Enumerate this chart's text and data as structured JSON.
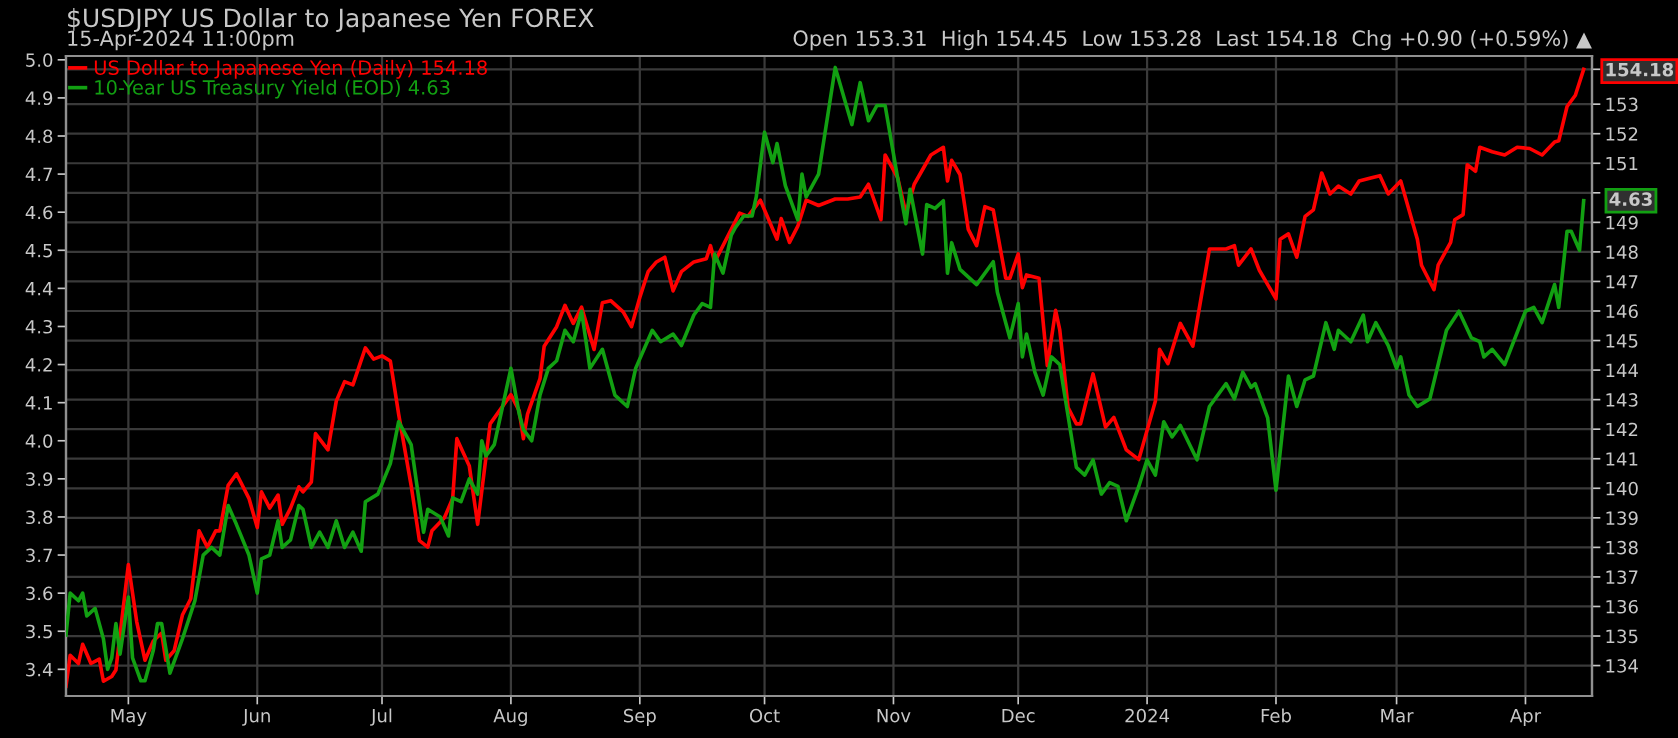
{
  "chart_data": {
    "type": "line",
    "title": "$USDJPY US Dollar to Japanese Yen FOREX",
    "subtitle": "15-Apr-2024 11:00pm",
    "annotations": [
      "Open 153.31  High 154.45  Low 153.28  Last 154.18  Chg +0.90 (+0.59%) ▲",
      {
        "text": "4.63",
        "x": "2024-04-15",
        "y": 4.63
      }
    ],
    "legend": "top left",
    "grid": true,
    "xlim": [
      "2023-04-16",
      "2024-04-17"
    ],
    "xticks": [
      {
        "value": "2023-05-01",
        "label": "May"
      },
      {
        "value": "2023-06-01",
        "label": "Jun"
      },
      {
        "value": "2023-07-01",
        "label": "Jul"
      },
      {
        "value": "2023-08-01",
        "label": "Aug"
      },
      {
        "value": "2023-09-01",
        "label": "Sep"
      },
      {
        "value": "2023-10-01",
        "label": "Oct"
      },
      {
        "value": "2023-11-01",
        "label": "Nov"
      },
      {
        "value": "2023-12-01",
        "label": "Dec"
      },
      {
        "value": "2024-01-01",
        "label": "2024"
      },
      {
        "value": "2024-02-01",
        "label": "Feb"
      },
      {
        "value": "2024-03-01",
        "label": "Mar"
      },
      {
        "value": "2024-04-01",
        "label": "Apr"
      }
    ],
    "ylim": [
      3.33,
      5.01
    ],
    "yticks": [
      3.4,
      3.5,
      3.6,
      3.7,
      3.8,
      3.9,
      {
        "value": 4,
        "label": "4.0"
      },
      4.1,
      4.2,
      4.3,
      4.4,
      4.5,
      4.6,
      4.7,
      4.8,
      4.9,
      {
        "value": 5,
        "label": "5.0"
      }
    ],
    "y2lim": [
      132.97,
      154.63
    ],
    "y2ticks": [
      134,
      135,
      136,
      137,
      138,
      139,
      140,
      141,
      142,
      143,
      144,
      145,
      146,
      147,
      148,
      149,
      {
        "value": 150,
        "label": null
      },
      151,
      152,
      153,
      {
        "value": 154.18,
        "label": "154.18"
      }
    ],
    "series": [
      {
        "name": "US Dollar to Japanese Yen (Daily) 154.18",
        "color": "#ff0000",
        "axis": "y2",
        "x": [
          "2023-04-16",
          "2023-04-17",
          "2023-04-19",
          "2023-04-20",
          "2023-04-22",
          "2023-04-24",
          "2023-04-25",
          "2023-04-27",
          "2023-04-28",
          "2023-05-01",
          "2023-05-03",
          "2023-05-05",
          "2023-05-07",
          "2023-05-09",
          "2023-05-10",
          "2023-05-12",
          "2023-05-14",
          "2023-05-16",
          "2023-05-18",
          "2023-05-20",
          "2023-05-22",
          "2023-05-23",
          "2023-05-25",
          "2023-05-27",
          "2023-05-30",
          "2023-06-01",
          "2023-06-02",
          "2023-06-04",
          "2023-06-06",
          "2023-06-07",
          "2023-06-09",
          "2023-06-11",
          "2023-06-12",
          "2023-06-14",
          "2023-06-15",
          "2023-06-18",
          "2023-06-20",
          "2023-06-22",
          "2023-06-24",
          "2023-06-27",
          "2023-06-29",
          "2023-07-01",
          "2023-07-03",
          "2023-07-05",
          "2023-07-08",
          "2023-07-10",
          "2023-07-12",
          "2023-07-13",
          "2023-07-16",
          "2023-07-18",
          "2023-07-19",
          "2023-07-22",
          "2023-07-24",
          "2023-07-27",
          "2023-08-01",
          "2023-08-03",
          "2023-08-04",
          "2023-08-05",
          "2023-08-08",
          "2023-08-09",
          "2023-08-12",
          "2023-08-14",
          "2023-08-16",
          "2023-08-18",
          "2023-08-21",
          "2023-08-23",
          "2023-08-25",
          "2023-08-28",
          "2023-08-30",
          "2023-09-01",
          "2023-09-03",
          "2023-09-05",
          "2023-09-07",
          "2023-09-09",
          "2023-09-11",
          "2023-09-14",
          "2023-09-17",
          "2023-09-18",
          "2023-09-19",
          "2023-09-23",
          "2023-09-25",
          "2023-09-27",
          "2023-09-30",
          "2023-10-02",
          "2023-10-04",
          "2023-10-05",
          "2023-10-07",
          "2023-10-09",
          "2023-10-11",
          "2023-10-14",
          "2023-10-18",
          "2023-10-21",
          "2023-10-24",
          "2023-10-26",
          "2023-10-29",
          "2023-10-30",
          "2023-11-02",
          "2023-11-04",
          "2023-11-06",
          "2023-11-10",
          "2023-11-13",
          "2023-11-14",
          "2023-11-15",
          "2023-11-17",
          "2023-11-19",
          "2023-11-21",
          "2023-11-23",
          "2023-11-25",
          "2023-11-28",
          "2023-11-29",
          "2023-12-01",
          "2023-12-02",
          "2023-12-03",
          "2023-12-06",
          "2023-12-08",
          "2023-12-10",
          "2023-12-11",
          "2023-12-13",
          "2023-12-15",
          "2023-12-16",
          "2023-12-19",
          "2023-12-22",
          "2023-12-24",
          "2023-12-27",
          "2023-12-30",
          "2024-01-03",
          "2024-01-04",
          "2024-01-06",
          "2024-01-09",
          "2024-01-12",
          "2024-01-16",
          "2024-01-20",
          "2024-01-22",
          "2024-01-23",
          "2024-01-26",
          "2024-01-28",
          "2024-02-01",
          "2024-02-02",
          "2024-02-04",
          "2024-02-06",
          "2024-02-08",
          "2024-02-10",
          "2024-02-12",
          "2024-02-14",
          "2024-02-16",
          "2024-02-19",
          "2024-02-21",
          "2024-02-24",
          "2024-02-26",
          "2024-02-28",
          "2024-03-02",
          "2024-03-06",
          "2024-03-07",
          "2024-03-10",
          "2024-03-11",
          "2024-03-14",
          "2024-03-15",
          "2024-03-17",
          "2024-03-18",
          "2024-03-20",
          "2024-03-21",
          "2024-03-24",
          "2024-03-27",
          "2024-03-30",
          "2024-04-02",
          "2024-04-05",
          "2024-04-08",
          "2024-04-09",
          "2024-04-11",
          "2024-04-13",
          "2024-04-15"
        ],
        "values": [
          133.3,
          134.35,
          134.07,
          134.72,
          134.07,
          134.22,
          133.47,
          133.63,
          133.85,
          137.42,
          135.49,
          134.18,
          134.83,
          135.1,
          134.18,
          134.5,
          135.71,
          136.26,
          138.56,
          138.01,
          138.56,
          138.56,
          140.1,
          140.49,
          139.66,
          138.67,
          139.88,
          139.33,
          139.77,
          138.78,
          139.33,
          140.05,
          139.88,
          140.21,
          141.85,
          141.3,
          142.95,
          143.61,
          143.5,
          144.75,
          144.37,
          144.48,
          144.31,
          142.51,
          140.1,
          138.23,
          138.01,
          138.56,
          139.0,
          139.66,
          141.68,
          140.75,
          138.78,
          142.18,
          143.17,
          142.62,
          141.68,
          142.51,
          143.71,
          144.81,
          145.47,
          146.19,
          145.58,
          146.13,
          144.7,
          146.28,
          146.35,
          145.97,
          145.47,
          146.46,
          147.33,
          147.66,
          147.82,
          146.68,
          147.33,
          147.66,
          147.77,
          148.21,
          147.66,
          148.76,
          149.31,
          149.2,
          149.75,
          149.09,
          148.43,
          149.13,
          148.32,
          148.87,
          149.75,
          149.57,
          149.79,
          149.79,
          149.86,
          150.29,
          149.09,
          151.28,
          150.51,
          149.31,
          150.29,
          151.28,
          151.54,
          150.4,
          151.1,
          150.62,
          148.76,
          148.21,
          149.53,
          149.42,
          147.11,
          147.11,
          147.93,
          146.79,
          147.22,
          147.11,
          144.15,
          146.02,
          145.36,
          142.73,
          142.18,
          142.18,
          143.87,
          142.07,
          142.4,
          141.3,
          140.97,
          142.95,
          144.7,
          144.22,
          145.58,
          144.81,
          148.1,
          148.1,
          148.21,
          147.55,
          148.1,
          147.38,
          146.41,
          148.43,
          148.61,
          147.82,
          149.2,
          149.42,
          150.67,
          149.96,
          150.23,
          149.96,
          150.4,
          150.51,
          150.58,
          149.96,
          150.4,
          148.43,
          147.55,
          146.72,
          147.55,
          148.32,
          149.09,
          149.26,
          150.95,
          150.73,
          151.54,
          151.39,
          151.28,
          151.54,
          151.5,
          151.28,
          151.72,
          151.76,
          152.92,
          153.3,
          154.18
        ]
      },
      {
        "name": "10-Year US Treasury Yield (EOD) 4.63",
        "color": "#12a012",
        "x": [
          "2023-04-16",
          "2023-04-17",
          "2023-04-19",
          "2023-04-20",
          "2023-04-21",
          "2023-04-23",
          "2023-04-25",
          "2023-04-26",
          "2023-04-27",
          "2023-04-28",
          "2023-04-29",
          "2023-05-01",
          "2023-05-02",
          "2023-05-04",
          "2023-05-05",
          "2023-05-07",
          "2023-05-08",
          "2023-05-09",
          "2023-05-11",
          "2023-05-14",
          "2023-05-17",
          "2023-05-19",
          "2023-05-21",
          "2023-05-23",
          "2023-05-25",
          "2023-05-27",
          "2023-05-30",
          "2023-06-01",
          "2023-06-02",
          "2023-06-04",
          "2023-06-06",
          "2023-06-07",
          "2023-06-09",
          "2023-06-11",
          "2023-06-12",
          "2023-06-14",
          "2023-06-16",
          "2023-06-18",
          "2023-06-20",
          "2023-06-22",
          "2023-06-24",
          "2023-06-26",
          "2023-06-27",
          "2023-06-30",
          "2023-07-03",
          "2023-07-05",
          "2023-07-06",
          "2023-07-08",
          "2023-07-11",
          "2023-07-12",
          "2023-07-15",
          "2023-07-17",
          "2023-07-18",
          "2023-07-20",
          "2023-07-22",
          "2023-07-24",
          "2023-07-25",
          "2023-07-26",
          "2023-07-28",
          "2023-08-01",
          "2023-08-03",
          "2023-08-04",
          "2023-08-06",
          "2023-08-08",
          "2023-08-10",
          "2023-08-12",
          "2023-08-14",
          "2023-08-16",
          "2023-08-18",
          "2023-08-20",
          "2023-08-23",
          "2023-08-26",
          "2023-08-29",
          "2023-08-31",
          "2023-09-04",
          "2023-09-06",
          "2023-09-09",
          "2023-09-11",
          "2023-09-14",
          "2023-09-16",
          "2023-09-18",
          "2023-09-19",
          "2023-09-21",
          "2023-09-23",
          "2023-09-24",
          "2023-09-26",
          "2023-09-28",
          "2023-09-29",
          "2023-10-01",
          "2023-10-03",
          "2023-10-04",
          "2023-10-06",
          "2023-10-09",
          "2023-10-10",
          "2023-10-11",
          "2023-10-14",
          "2023-10-18",
          "2023-10-22",
          "2023-10-24",
          "2023-10-26",
          "2023-10-28",
          "2023-10-30",
          "2023-11-02",
          "2023-11-04",
          "2023-11-05",
          "2023-11-08",
          "2023-11-09",
          "2023-11-11",
          "2023-11-13",
          "2023-11-14",
          "2023-11-15",
          "2023-11-17",
          "2023-11-21",
          "2023-11-25",
          "2023-11-26",
          "2023-11-29",
          "2023-12-01",
          "2023-12-02",
          "2023-12-03",
          "2023-12-05",
          "2023-12-07",
          "2023-12-09",
          "2023-12-11",
          "2023-12-15",
          "2023-12-17",
          "2023-12-19",
          "2023-12-21",
          "2023-12-23",
          "2023-12-25",
          "2023-12-27",
          "2023-12-30",
          "2024-01-01",
          "2024-01-03",
          "2024-01-05",
          "2024-01-07",
          "2024-01-09",
          "2024-01-13",
          "2024-01-16",
          "2024-01-20",
          "2024-01-22",
          "2024-01-24",
          "2024-01-26",
          "2024-01-27",
          "2024-01-30",
          "2024-02-01",
          "2024-02-04",
          "2024-02-06",
          "2024-02-08",
          "2024-02-10",
          "2024-02-13",
          "2024-02-15",
          "2024-02-16",
          "2024-02-19",
          "2024-02-22",
          "2024-02-23",
          "2024-02-25",
          "2024-02-28",
          "2024-03-01",
          "2024-03-02",
          "2024-03-04",
          "2024-03-06",
          "2024-03-09",
          "2024-03-13",
          "2024-03-16",
          "2024-03-19",
          "2024-03-21",
          "2024-03-22",
          "2024-03-24",
          "2024-03-27",
          "2024-04-01",
          "2024-04-03",
          "2024-04-05",
          "2024-04-08",
          "2024-04-09",
          "2024-04-11",
          "2024-04-12",
          "2024-04-14",
          "2024-04-15"
        ],
        "values": [
          3.49,
          3.6,
          3.58,
          3.6,
          3.54,
          3.56,
          3.48,
          3.4,
          3.43,
          3.52,
          3.44,
          3.59,
          3.43,
          3.37,
          3.37,
          3.45,
          3.52,
          3.52,
          3.39,
          3.48,
          3.58,
          3.7,
          3.72,
          3.7,
          3.83,
          3.78,
          3.7,
          3.6,
          3.69,
          3.7,
          3.79,
          3.72,
          3.74,
          3.83,
          3.82,
          3.72,
          3.76,
          3.72,
          3.79,
          3.72,
          3.76,
          3.71,
          3.84,
          3.86,
          3.94,
          4.05,
          4.03,
          3.99,
          3.76,
          3.82,
          3.8,
          3.75,
          3.85,
          3.84,
          3.9,
          3.86,
          4.0,
          3.96,
          3.99,
          4.19,
          4.07,
          4.03,
          4.0,
          4.12,
          4.19,
          4.21,
          4.29,
          4.26,
          4.34,
          4.19,
          4.24,
          4.12,
          4.09,
          4.19,
          4.29,
          4.26,
          4.28,
          4.25,
          4.33,
          4.36,
          4.35,
          4.49,
          4.44,
          4.54,
          4.56,
          4.59,
          4.59,
          4.64,
          4.81,
          4.73,
          4.78,
          4.67,
          4.58,
          4.7,
          4.64,
          4.7,
          4.98,
          4.83,
          4.94,
          4.84,
          4.88,
          4.88,
          4.69,
          4.57,
          4.66,
          4.49,
          4.62,
          4.61,
          4.63,
          4.44,
          4.52,
          4.45,
          4.41,
          4.47,
          4.39,
          4.27,
          4.36,
          4.22,
          4.28,
          4.18,
          4.12,
          4.22,
          4.2,
          3.93,
          3.91,
          3.95,
          3.86,
          3.89,
          3.88,
          3.79,
          3.88,
          3.95,
          3.91,
          4.05,
          4.01,
          4.04,
          3.95,
          4.09,
          4.15,
          4.11,
          4.18,
          4.14,
          4.15,
          4.06,
          3.87,
          4.17,
          4.09,
          4.16,
          4.17,
          4.31,
          4.24,
          4.29,
          4.26,
          4.33,
          4.26,
          4.31,
          4.25,
          4.19,
          4.22,
          4.12,
          4.09,
          4.11,
          4.29,
          4.34,
          4.27,
          4.26,
          4.22,
          4.24,
          4.2,
          4.34,
          4.35,
          4.31,
          4.41,
          4.35,
          4.55,
          4.55,
          4.5,
          4.63
        ]
      }
    ]
  }
}
